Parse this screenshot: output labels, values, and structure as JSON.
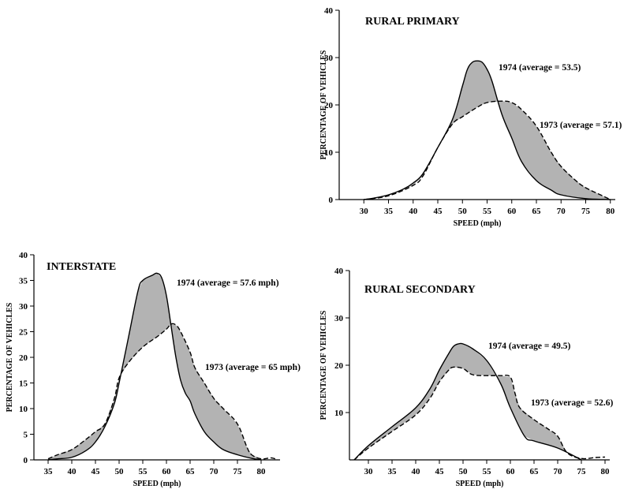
{
  "chart_data": [
    {
      "type": "line",
      "title": "RURAL PRIMARY",
      "xlabel": "SPEED (mph)",
      "ylabel": "PERCENTAGE OF VEHICLES",
      "xlim": [
        25,
        81
      ],
      "ylim": [
        0,
        40
      ],
      "xticks": [
        30,
        35,
        40,
        45,
        50,
        55,
        60,
        65,
        70,
        75,
        80
      ],
      "yticks": [
        0,
        10,
        20,
        30,
        40
      ],
      "grid": false,
      "fill_between": true,
      "fill_color": "#b3b3b3",
      "series": [
        {
          "name": "1974 (average = 53.5)",
          "style": "solid",
          "x": [
            30,
            32,
            35,
            38,
            40,
            42,
            45,
            48,
            50,
            51,
            52,
            53,
            54,
            55,
            56,
            58,
            60,
            62,
            65,
            68,
            70,
            75,
            80
          ],
          "y": [
            0,
            0.3,
            1,
            2.2,
            3.5,
            5.5,
            11,
            17,
            24,
            27.5,
            29,
            29.3,
            29,
            27.5,
            25,
            18,
            13,
            8,
            4,
            2,
            1,
            0.2,
            0
          ]
        },
        {
          "name": "1973 (average = 57.1)",
          "style": "dashed",
          "x": [
            30,
            35,
            40,
            42,
            45,
            48,
            50,
            53,
            55,
            58,
            60,
            62,
            65,
            68,
            70,
            73,
            75,
            78,
            80
          ],
          "y": [
            0,
            0.8,
            3,
            5,
            11,
            16,
            17.5,
            19.5,
            20.5,
            20.8,
            20.5,
            19,
            15.5,
            10,
            7,
            4,
            2.5,
            1,
            0
          ]
        }
      ]
    },
    {
      "type": "line",
      "title": "INTERSTATE",
      "xlabel": "SPEED (mph)",
      "ylabel": "PERCENTAGE OF VEHICLES",
      "xlim": [
        32,
        84
      ],
      "ylim": [
        0,
        40
      ],
      "xticks": [
        35,
        40,
        45,
        50,
        55,
        60,
        65,
        70,
        75,
        80
      ],
      "yticks": [
        0,
        5,
        10,
        15,
        20,
        25,
        30,
        35,
        40
      ],
      "grid": false,
      "fill_between": true,
      "fill_color": "#b3b3b3",
      "series": [
        {
          "name": "1974 (average = 57.6 mph)",
          "style": "solid",
          "x": [
            35,
            37,
            40,
            43,
            45,
            47,
            49,
            50,
            52,
            54,
            55,
            57,
            58,
            59,
            60,
            61,
            62,
            63,
            64,
            65,
            66,
            68,
            70,
            72,
            75,
            78,
            80
          ],
          "y": [
            0,
            0.2,
            0.5,
            1.8,
            3.5,
            6.5,
            11,
            15,
            24,
            33,
            35,
            36,
            36.4,
            35.5,
            32,
            26,
            20,
            15.5,
            13,
            11.5,
            9,
            5.5,
            3.5,
            2,
            1,
            0.3,
            0
          ]
        },
        {
          "name": "1973 (average = 65 mph)",
          "style": "dashed",
          "x": [
            35,
            37,
            40,
            43,
            45,
            47,
            49,
            50,
            52,
            55,
            58,
            60,
            61,
            62,
            63,
            65,
            66,
            68,
            70,
            72,
            75,
            77,
            78,
            80,
            82,
            83
          ],
          "y": [
            0.2,
            1,
            2,
            4,
            5.5,
            7,
            12,
            16,
            19,
            22,
            24,
            25.5,
            26.5,
            26.3,
            25,
            21,
            18,
            15,
            12,
            10,
            7,
            2.5,
            1,
            0.2,
            0.4,
            0.2
          ]
        }
      ]
    },
    {
      "type": "line",
      "title": "RURAL SECONDARY",
      "xlabel": "SPEED (mph)",
      "ylabel": "PERCENTAGE OF VEHICLES",
      "xlim": [
        26,
        81
      ],
      "ylim": [
        0,
        40
      ],
      "xticks": [
        30,
        35,
        40,
        45,
        50,
        55,
        60,
        65,
        70,
        75,
        80
      ],
      "yticks": [
        10,
        20,
        30,
        40
      ],
      "grid": false,
      "fill_between": true,
      "fill_color": "#b3b3b3",
      "series": [
        {
          "name": "1974 (average = 49.5)",
          "style": "solid",
          "x": [
            27,
            30,
            35,
            40,
            43,
            45,
            47,
            48,
            49,
            50,
            52,
            55,
            58,
            60,
            63,
            65,
            70,
            75
          ],
          "y": [
            0,
            3,
            7,
            11,
            15,
            19,
            22.5,
            24,
            24.5,
            24.5,
            23.5,
            21,
            16,
            11,
            5,
            4,
            2.5,
            0
          ]
        },
        {
          "name": "1973 (average = 52.6)",
          "style": "dashed",
          "x": [
            27,
            30,
            35,
            40,
            43,
            45,
            47,
            48,
            50,
            52,
            55,
            58,
            60,
            61,
            62,
            65,
            68,
            70,
            72,
            75,
            78,
            80
          ],
          "y": [
            0,
            2.5,
            6,
            9.5,
            13,
            16.5,
            19,
            19.6,
            19.3,
            18,
            17.8,
            17.8,
            17.5,
            14,
            11,
            8.5,
            6.5,
            5,
            1.5,
            0.3,
            0.5,
            0.6
          ]
        }
      ]
    }
  ]
}
